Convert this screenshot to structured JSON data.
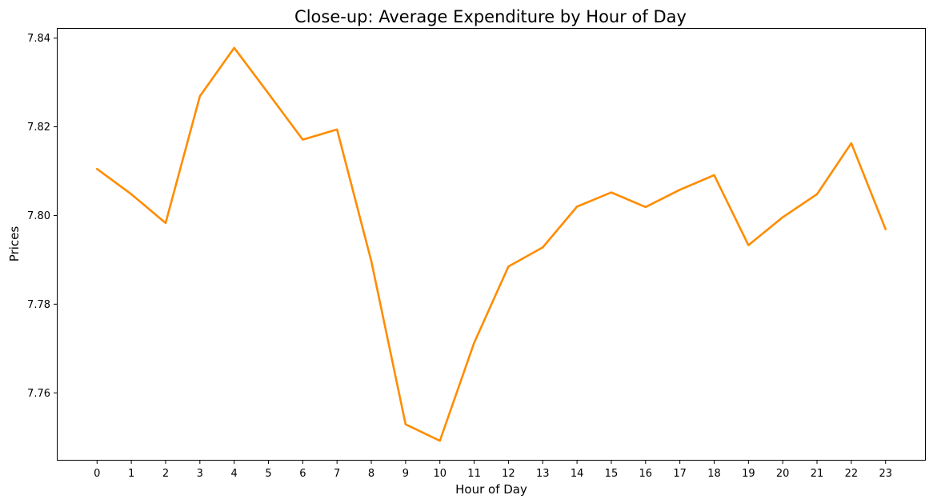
{
  "chart_data": {
    "type": "line",
    "title": "Close-up: Average Expenditure by Hour of Day",
    "xlabel": "Hour of Day",
    "ylabel": "Prices",
    "x": [
      0,
      1,
      2,
      3,
      4,
      5,
      6,
      7,
      8,
      9,
      10,
      11,
      12,
      13,
      14,
      15,
      16,
      17,
      18,
      19,
      20,
      21,
      22,
      23
    ],
    "series": [
      {
        "values": [
          7.8105,
          7.8048,
          7.7983,
          7.8269,
          7.8378,
          7.8275,
          7.8171,
          7.8194,
          7.7897,
          7.7529,
          7.7492,
          7.7713,
          7.7885,
          7.7928,
          7.802,
          7.8052,
          7.8019,
          7.8058,
          7.8091,
          7.7933,
          7.7996,
          7.8048,
          7.8163,
          7.7969
        ],
        "color": "#ff8c00"
      }
    ],
    "yticks": [
      "7.76",
      "7.78",
      "7.80",
      "7.82",
      "7.84"
    ],
    "ylim": [
      7.7449,
      7.8421
    ],
    "xlim": [
      -1.15,
      24.15
    ],
    "grid": false,
    "legend": false
  }
}
